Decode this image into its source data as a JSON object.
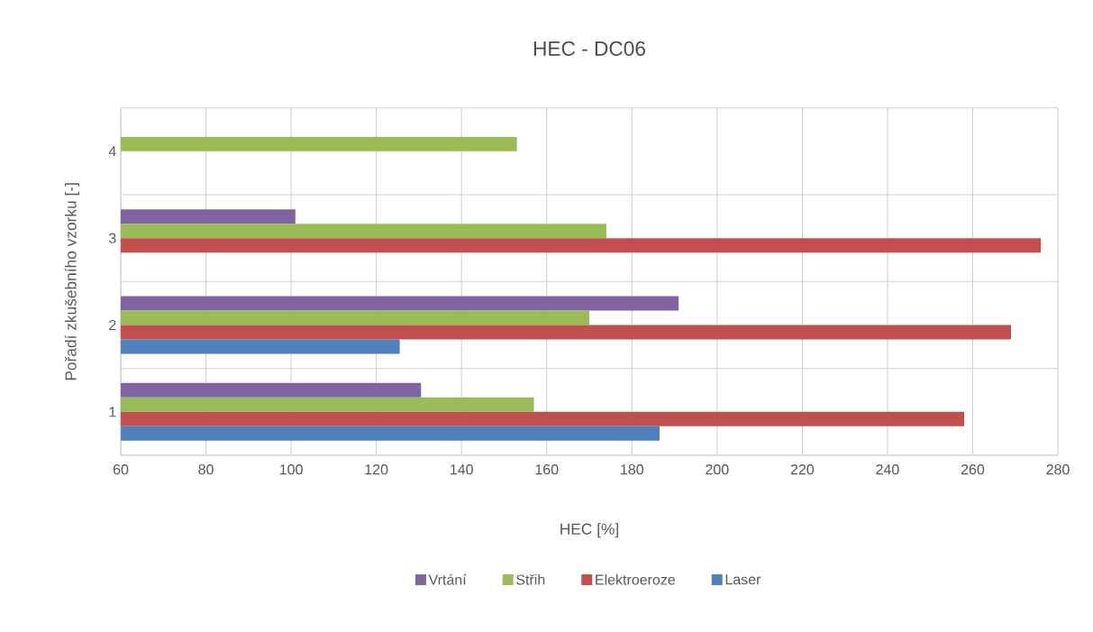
{
  "chart_data": {
    "type": "bar",
    "orientation": "horizontal",
    "title": "HEC - DC06",
    "xlabel": "HEC [%]",
    "ylabel": "Pořadí zkušebního vzorku [-]",
    "categories": [
      "4",
      "3",
      "2",
      "1"
    ],
    "series": [
      {
        "name": "Vrtání",
        "color": "#8064a2",
        "values": [
          60,
          101,
          191,
          130.5
        ]
      },
      {
        "name": "Střih",
        "color": "#9bbb59",
        "values": [
          153,
          174,
          170,
          157
        ]
      },
      {
        "name": "Elektroeroze",
        "color": "#c0504d",
        "values": [
          60,
          276,
          269,
          258
        ]
      },
      {
        "name": "Laser",
        "color": "#4f81bd",
        "values": [
          60,
          60,
          125.5,
          186.5
        ]
      }
    ],
    "xlim": [
      60,
      280
    ],
    "xticks": [
      60,
      80,
      100,
      120,
      140,
      160,
      180,
      200,
      220,
      240,
      260,
      280
    ],
    "grid": true,
    "legend": "bottom"
  }
}
